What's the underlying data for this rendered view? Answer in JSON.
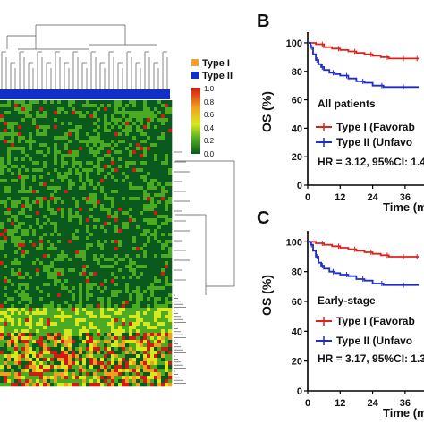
{
  "heatmap": {
    "legend": [
      {
        "label": "Type I",
        "color": "#f0a030"
      },
      {
        "label": "Type II",
        "color": "#1030c8"
      }
    ],
    "colorbar_ticks": [
      "1.0",
      "0.8",
      "0.6",
      "0.4",
      "0.2",
      "0.0"
    ],
    "colorscale": [
      "#0a5a1e",
      "#4caa22",
      "#d8e81e",
      "#f0a020",
      "#d21a14"
    ],
    "annotation_bar_color": "#1030c8"
  },
  "chart_data": [
    {
      "type": "heatmap",
      "value_range": [
        0.0,
        1.0
      ],
      "column_annotation": "Type II",
      "legend": [
        "Type I",
        "Type II"
      ]
    },
    {
      "type": "line",
      "panel": "B",
      "title": "",
      "xlabel": "Time (m",
      "ylabel": "OS (%)",
      "x_ticks": [
        "0",
        "12",
        "24",
        "36"
      ],
      "y_ticks": [
        "0",
        "20",
        "40",
        "60",
        "80",
        "100"
      ],
      "xlim": [
        0,
        41
      ],
      "ylim": [
        0,
        105
      ],
      "subgroup": "All patients",
      "legend": [
        "Type I (Favorab",
        "Type II (Unfavo"
      ],
      "annotation": "HR = 3.12, 95%CI: 1.4",
      "series": [
        {
          "name": "Type I (Favorab",
          "color": "#e0201c",
          "x": [
            0,
            3,
            6,
            9,
            12,
            15,
            18,
            21,
            24,
            27,
            30,
            33,
            36,
            39,
            41
          ],
          "values": [
            100,
            99,
            97,
            96,
            95,
            94,
            93,
            92,
            91,
            90,
            89,
            89,
            89,
            89,
            89
          ]
        },
        {
          "name": "Type II (Unfavo",
          "color": "#1e2cc8",
          "x": [
            0,
            1,
            2,
            3,
            4,
            5,
            6,
            8,
            10,
            12,
            15,
            18,
            21,
            24,
            28,
            32,
            36,
            41
          ],
          "values": [
            100,
            97,
            92,
            88,
            85,
            83,
            81,
            79,
            78,
            77,
            75,
            73,
            72,
            70,
            69,
            69,
            69,
            69
          ]
        }
      ]
    },
    {
      "type": "line",
      "panel": "C",
      "title": "",
      "xlabel": "Time (m",
      "ylabel": "OS (%)",
      "x_ticks": [
        "0",
        "12",
        "24",
        "36"
      ],
      "y_ticks": [
        "0",
        "20",
        "40",
        "60",
        "80",
        "100"
      ],
      "xlim": [
        0,
        41
      ],
      "ylim": [
        0,
        105
      ],
      "subgroup": "Early-stage",
      "legend": [
        "Type I (Favorab",
        "Type II (Unfavo"
      ],
      "annotation": "HR = 3.17, 95%CI: 1.3",
      "series": [
        {
          "name": "Type I (Favorab",
          "color": "#e0201c",
          "x": [
            0,
            3,
            6,
            9,
            12,
            15,
            18,
            21,
            24,
            27,
            30,
            33,
            36,
            39,
            41
          ],
          "values": [
            100,
            99,
            98,
            97,
            96,
            95,
            94,
            93,
            92,
            91,
            90,
            90,
            90,
            90,
            90
          ]
        },
        {
          "name": "Type II (Unfavo",
          "color": "#1e2cc8",
          "x": [
            0,
            1,
            2,
            3,
            4,
            5,
            6,
            8,
            10,
            12,
            15,
            18,
            21,
            24,
            28,
            32,
            36,
            41
          ],
          "values": [
            100,
            98,
            94,
            90,
            86,
            84,
            82,
            80,
            79,
            78,
            77,
            75,
            74,
            72,
            71,
            71,
            71,
            71
          ]
        }
      ]
    }
  ]
}
